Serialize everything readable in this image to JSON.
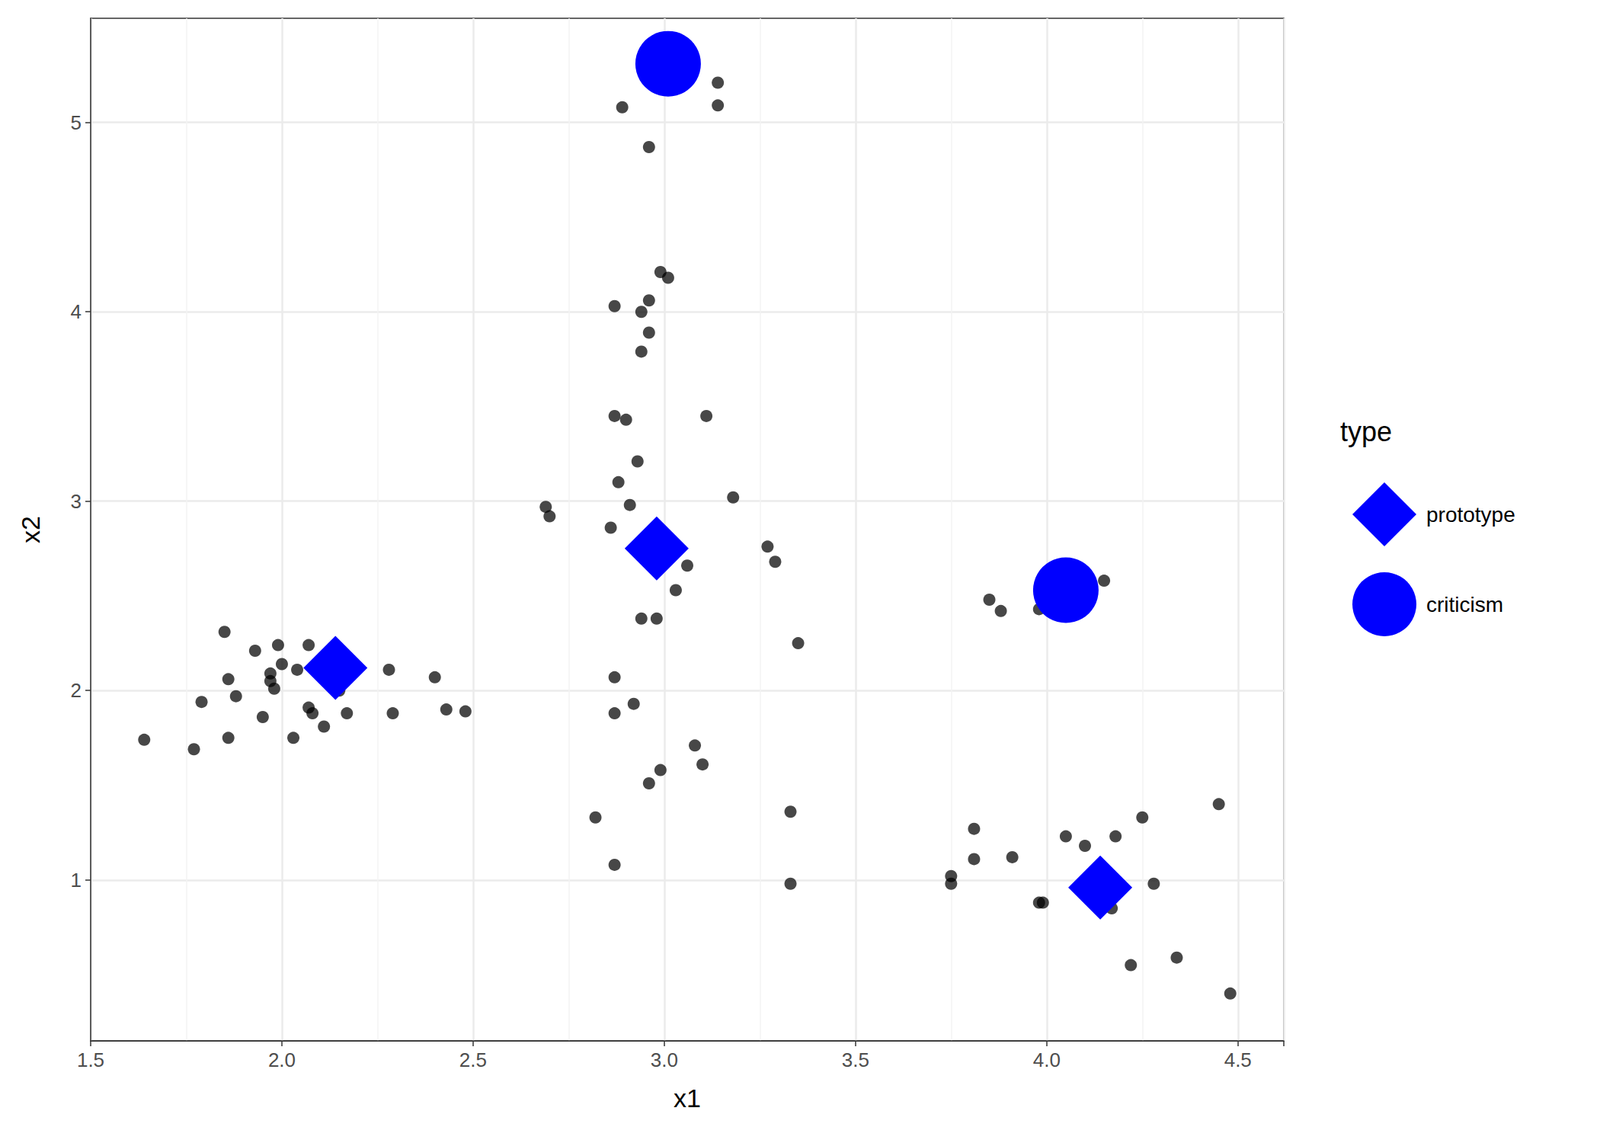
{
  "chart_data": {
    "type": "scatter",
    "x_label": "x1",
    "y_label": "x2",
    "legend_title": "type",
    "xlim": [
      1.5,
      4.62
    ],
    "ylim": [
      0.15,
      5.55
    ],
    "xticks": [
      {
        "value": 1.5,
        "label": "1.5"
      },
      {
        "value": 2.0,
        "label": "2.0"
      },
      {
        "value": 2.5,
        "label": "2.5"
      },
      {
        "value": 3.0,
        "label": "3.0"
      },
      {
        "value": 3.5,
        "label": "3.5"
      },
      {
        "value": 4.0,
        "label": "4.0"
      },
      {
        "value": 4.5,
        "label": "4.5"
      }
    ],
    "yticks": [
      1,
      2,
      3,
      4,
      5
    ],
    "grid": true,
    "legend": "right",
    "series": [
      {
        "color": "#000000",
        "marker": "circle",
        "x": [
          1.64,
          1.77,
          1.79,
          1.85,
          1.86,
          1.86,
          1.88,
          1.93,
          1.95,
          1.97,
          1.97,
          1.98,
          1.99,
          2.0,
          2.03,
          2.04,
          2.07,
          2.07,
          2.08,
          2.11,
          2.15,
          2.17,
          2.28,
          2.29,
          2.4,
          2.43,
          2.48,
          2.89,
          3.14,
          3.14,
          2.96,
          2.99,
          3.01,
          2.87,
          2.96,
          2.94,
          2.96,
          2.94,
          2.87,
          2.9,
          3.11,
          2.93,
          2.88,
          2.91,
          2.69,
          2.7,
          3.18,
          2.86,
          3.27,
          3.29,
          3.06,
          3.03,
          2.94,
          2.98,
          3.35,
          2.87,
          2.87,
          2.92,
          3.08,
          3.1,
          2.96,
          2.99,
          2.82,
          3.33,
          2.87,
          3.33,
          3.85,
          3.88,
          3.98,
          4.02,
          4.15,
          3.81,
          3.81,
          3.91,
          3.75,
          3.75,
          3.98,
          3.99,
          4.05,
          4.1,
          4.18,
          4.25,
          4.28,
          4.17,
          4.22,
          4.34,
          4.45,
          4.48
        ],
        "values": [
          1.74,
          1.69,
          1.94,
          2.31,
          2.06,
          1.75,
          1.97,
          2.21,
          1.86,
          2.09,
          2.05,
          2.01,
          2.24,
          2.14,
          1.75,
          2.11,
          2.24,
          1.91,
          1.88,
          1.81,
          2.0,
          1.88,
          2.11,
          1.88,
          2.07,
          1.9,
          1.89,
          5.08,
          5.21,
          5.09,
          4.87,
          4.21,
          4.18,
          4.03,
          4.06,
          4.0,
          3.89,
          3.79,
          3.45,
          3.43,
          3.45,
          3.21,
          3.1,
          2.98,
          2.97,
          2.92,
          3.02,
          2.86,
          2.76,
          2.68,
          2.66,
          2.53,
          2.38,
          2.38,
          2.25,
          2.07,
          1.88,
          1.93,
          1.71,
          1.61,
          1.51,
          1.58,
          1.33,
          1.36,
          1.08,
          0.98,
          2.48,
          2.42,
          2.43,
          2.41,
          2.58,
          1.27,
          1.11,
          1.12,
          1.02,
          0.98,
          0.88,
          0.88,
          1.23,
          1.18,
          1.23,
          1.33,
          0.98,
          0.85,
          0.55,
          0.59,
          1.4,
          0.4
        ]
      },
      {
        "name": "prototype",
        "color": "#0000ff",
        "marker": "diamond",
        "x": [
          2.14,
          2.98,
          4.14
        ],
        "values": [
          2.12,
          2.75,
          0.96
        ]
      },
      {
        "name": "criticism",
        "color": "#0000ff",
        "marker": "circle",
        "x": [
          3.01,
          4.05
        ],
        "values": [
          5.31,
          2.53
        ]
      }
    ]
  }
}
